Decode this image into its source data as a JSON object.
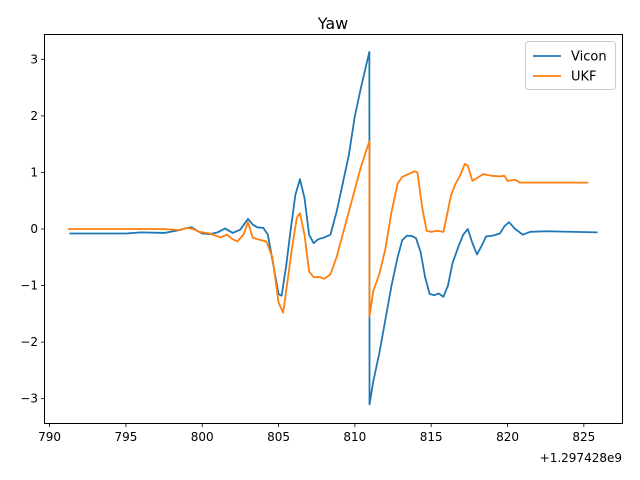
{
  "chart_data": {
    "type": "line",
    "title": "Yaw",
    "xlabel": "",
    "ylabel": "",
    "x_offset_label": "+1.297428e9",
    "xlim": [
      789.7,
      827.5
    ],
    "ylim": [
      -3.43,
      3.43
    ],
    "xticks": [
      790,
      795,
      800,
      805,
      810,
      815,
      820,
      825
    ],
    "yticks": [
      -3,
      -2,
      -1,
      0,
      1,
      2,
      3
    ],
    "grid": false,
    "legend_position": "top-right",
    "series": [
      {
        "name": "Vicon",
        "color": "#1f77b4",
        "points": [
          [
            791.3,
            -0.08
          ],
          [
            795.0,
            -0.08
          ],
          [
            796.0,
            -0.06
          ],
          [
            797.5,
            -0.07
          ],
          [
            798.5,
            -0.02
          ],
          [
            799.0,
            0.02
          ],
          [
            799.3,
            0.03
          ],
          [
            799.6,
            -0.02
          ],
          [
            800.0,
            -0.08
          ],
          [
            800.5,
            -0.09
          ],
          [
            801.0,
            -0.06
          ],
          [
            801.5,
            0.01
          ],
          [
            802.0,
            -0.07
          ],
          [
            802.5,
            -0.01
          ],
          [
            803.0,
            0.18
          ],
          [
            803.3,
            0.08
          ],
          [
            803.6,
            0.03
          ],
          [
            804.0,
            0.02
          ],
          [
            804.3,
            -0.1
          ],
          [
            804.6,
            -0.55
          ],
          [
            805.0,
            -1.15
          ],
          [
            805.2,
            -1.18
          ],
          [
            805.5,
            -0.65
          ],
          [
            805.8,
            0.0
          ],
          [
            806.1,
            0.6
          ],
          [
            806.4,
            0.88
          ],
          [
            806.7,
            0.55
          ],
          [
            807.0,
            -0.1
          ],
          [
            807.3,
            -0.25
          ],
          [
            807.6,
            -0.18
          ],
          [
            808.0,
            -0.15
          ],
          [
            808.4,
            -0.1
          ],
          [
            808.8,
            0.3
          ],
          [
            809.2,
            0.8
          ],
          [
            809.6,
            1.3
          ],
          [
            810.0,
            2.0
          ],
          [
            810.4,
            2.5
          ],
          [
            810.7,
            2.85
          ],
          [
            810.95,
            3.13
          ],
          [
            810.96,
            -3.1
          ],
          [
            811.2,
            -2.7
          ],
          [
            811.6,
            -2.2
          ],
          [
            812.0,
            -1.6
          ],
          [
            812.4,
            -1.0
          ],
          [
            812.8,
            -0.5
          ],
          [
            813.1,
            -0.2
          ],
          [
            813.4,
            -0.12
          ],
          [
            813.7,
            -0.12
          ],
          [
            814.0,
            -0.16
          ],
          [
            814.3,
            -0.4
          ],
          [
            814.6,
            -0.85
          ],
          [
            814.9,
            -1.15
          ],
          [
            815.2,
            -1.17
          ],
          [
            815.5,
            -1.14
          ],
          [
            815.8,
            -1.2
          ],
          [
            816.1,
            -1.0
          ],
          [
            816.4,
            -0.6
          ],
          [
            816.8,
            -0.3
          ],
          [
            817.1,
            -0.1
          ],
          [
            817.4,
            0.0
          ],
          [
            817.7,
            -0.25
          ],
          [
            818.0,
            -0.45
          ],
          [
            818.3,
            -0.3
          ],
          [
            818.6,
            -0.13
          ],
          [
            819.0,
            -0.12
          ],
          [
            819.5,
            -0.08
          ],
          [
            819.8,
            0.05
          ],
          [
            820.1,
            0.12
          ],
          [
            820.5,
            0.0
          ],
          [
            821.0,
            -0.1
          ],
          [
            821.5,
            -0.05
          ],
          [
            822.5,
            -0.04
          ],
          [
            825.9,
            -0.06
          ]
        ]
      },
      {
        "name": "UKF",
        "color": "#ff7f0e",
        "points": [
          [
            791.2,
            0.0
          ],
          [
            797.5,
            0.0
          ],
          [
            798.5,
            -0.02
          ],
          [
            799.0,
            0.02
          ],
          [
            799.4,
            0.0
          ],
          [
            799.8,
            -0.05
          ],
          [
            800.5,
            -0.08
          ],
          [
            801.2,
            -0.15
          ],
          [
            801.6,
            -0.1
          ],
          [
            802.0,
            -0.18
          ],
          [
            802.3,
            -0.22
          ],
          [
            802.7,
            -0.1
          ],
          [
            803.0,
            0.12
          ],
          [
            803.3,
            -0.15
          ],
          [
            803.6,
            -0.18
          ],
          [
            804.2,
            -0.22
          ],
          [
            804.6,
            -0.5
          ],
          [
            805.0,
            -1.3
          ],
          [
            805.3,
            -1.48
          ],
          [
            805.6,
            -0.9
          ],
          [
            805.9,
            -0.3
          ],
          [
            806.2,
            0.2
          ],
          [
            806.4,
            0.28
          ],
          [
            806.7,
            -0.1
          ],
          [
            807.0,
            -0.75
          ],
          [
            807.3,
            -0.85
          ],
          [
            807.7,
            -0.85
          ],
          [
            808.0,
            -0.88
          ],
          [
            808.4,
            -0.8
          ],
          [
            808.8,
            -0.5
          ],
          [
            809.2,
            -0.1
          ],
          [
            809.6,
            0.3
          ],
          [
            810.0,
            0.7
          ],
          [
            810.4,
            1.1
          ],
          [
            810.7,
            1.35
          ],
          [
            810.95,
            1.55
          ],
          [
            810.96,
            -1.55
          ],
          [
            811.2,
            -1.1
          ],
          [
            811.6,
            -0.8
          ],
          [
            812.0,
            -0.35
          ],
          [
            812.4,
            0.3
          ],
          [
            812.8,
            0.8
          ],
          [
            813.1,
            0.92
          ],
          [
            813.5,
            0.97
          ],
          [
            813.9,
            1.02
          ],
          [
            814.1,
            1.0
          ],
          [
            814.4,
            0.4
          ],
          [
            814.7,
            -0.03
          ],
          [
            815.0,
            -0.05
          ],
          [
            815.4,
            -0.03
          ],
          [
            815.8,
            -0.05
          ],
          [
            816.0,
            0.2
          ],
          [
            816.3,
            0.6
          ],
          [
            816.6,
            0.8
          ],
          [
            816.9,
            0.95
          ],
          [
            817.2,
            1.15
          ],
          [
            817.4,
            1.12
          ],
          [
            817.7,
            0.85
          ],
          [
            818.0,
            0.9
          ],
          [
            818.4,
            0.97
          ],
          [
            819.0,
            0.94
          ],
          [
            819.5,
            0.93
          ],
          [
            819.8,
            0.94
          ],
          [
            820.0,
            0.85
          ],
          [
            820.5,
            0.87
          ],
          [
            820.8,
            0.82
          ],
          [
            822.0,
            0.82
          ],
          [
            825.3,
            0.82
          ]
        ]
      }
    ]
  }
}
